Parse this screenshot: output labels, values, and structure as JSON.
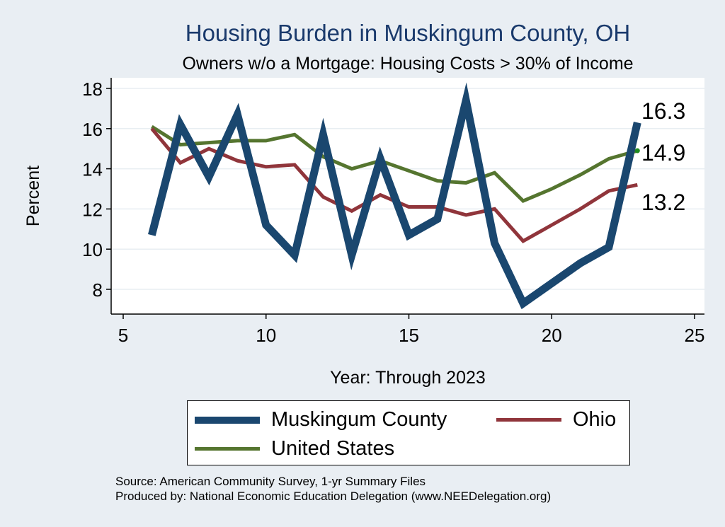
{
  "chart_data": {
    "type": "line",
    "title": "Housing Burden in Muskingum County, OH",
    "subtitle": "Owners w/o a Mortgage: Housing Costs > 30% of Income",
    "xlabel": "Year: Through 2023",
    "ylabel": "Percent",
    "xlim": [
      5,
      25
    ],
    "ylim": [
      6.8,
      18.6
    ],
    "xticks": [
      5,
      10,
      15,
      20,
      25
    ],
    "yticks": [
      8,
      10,
      12,
      14,
      16,
      18
    ],
    "grid": true,
    "legend_position": "bottom",
    "series": [
      {
        "name": "Muskingum County",
        "color": "#1a476f",
        "x": [
          6,
          7,
          8,
          9,
          10,
          11,
          12,
          13,
          14,
          15,
          16,
          17,
          18,
          19,
          20,
          21,
          22,
          23
        ],
        "values": [
          10.7,
          16.2,
          13.6,
          16.7,
          11.2,
          9.7,
          15.7,
          9.7,
          14.5,
          10.7,
          11.5,
          17.4,
          10.3,
          7.3,
          8.3,
          9.3,
          10.1,
          16.3
        ]
      },
      {
        "name": "Ohio",
        "color": "#90353b",
        "x": [
          6,
          7,
          8,
          9,
          10,
          11,
          12,
          13,
          14,
          15,
          16,
          17,
          18,
          19,
          20,
          21,
          22,
          23
        ],
        "values": [
          16.0,
          14.3,
          15.0,
          14.4,
          14.1,
          14.2,
          12.6,
          11.9,
          12.7,
          12.1,
          12.1,
          11.7,
          12.0,
          10.4,
          11.2,
          12.0,
          12.9,
          13.2
        ]
      },
      {
        "name": "United States",
        "color": "#55752f",
        "x": [
          6,
          7,
          8,
          9,
          10,
          11,
          12,
          13,
          14,
          15,
          16,
          17,
          18,
          19,
          20,
          21,
          22,
          23
        ],
        "values": [
          16.1,
          15.2,
          15.3,
          15.4,
          15.4,
          15.7,
          14.6,
          14.0,
          14.4,
          13.9,
          13.4,
          13.3,
          13.8,
          12.4,
          13.0,
          13.7,
          14.5,
          14.9
        ]
      }
    ],
    "end_labels": [
      "16.3",
      "14.9",
      "13.2"
    ]
  },
  "legend": {
    "items": [
      "Muskingum County",
      "Ohio",
      "United States"
    ]
  },
  "source": {
    "line1": "Source: American Community Survey, 1-yr Summary Files",
    "line2": "Produced by: National Economic Education Delegation (www.NEEDelegation.org)"
  }
}
